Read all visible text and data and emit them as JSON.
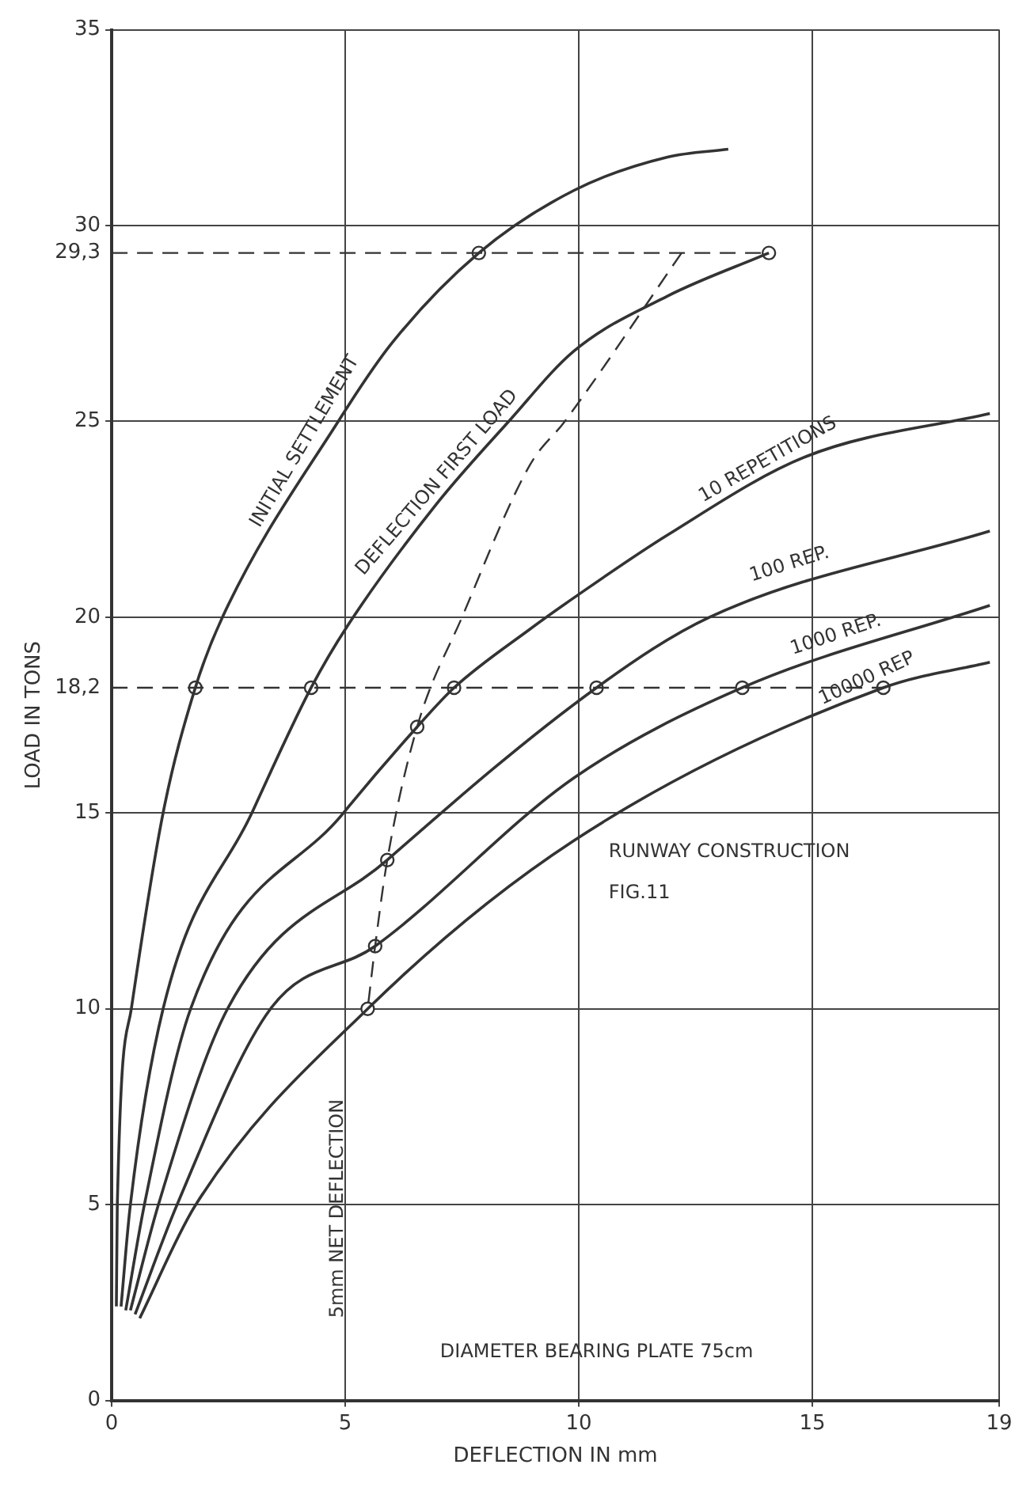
{
  "chart_data": {
    "type": "line",
    "xlabel": "DEFLECTION IN mm",
    "ylabel": "LOAD IN TONS",
    "xlim": [
      0,
      19
    ],
    "xticks": [
      0,
      5,
      10,
      15,
      19
    ],
    "ylim": [
      0,
      35
    ],
    "yticks": [
      0,
      5,
      10,
      15,
      {
        "value": 18.2,
        "label": "18,2"
      },
      20,
      25,
      {
        "value": 29.3,
        "label": "29,3"
      },
      30,
      35
    ],
    "grid": true,
    "legend": false,
    "marker": "none",
    "line_style": "solid",
    "series": [
      {
        "color": "#333333",
        "x": [
          0.1,
          0.12,
          0.42,
          1.1,
          1.79,
          2.37,
          4.85,
          6.0,
          7.86,
          9.9,
          11.9,
          13.2
        ],
        "values": [
          2.4,
          5,
          10,
          15,
          18.2,
          20,
          25,
          27,
          29.3,
          30.9,
          31.75,
          31.95
        ]
      },
      {
        "color": "#333333",
        "x": [
          0.2,
          0.4,
          1.1,
          3.0,
          4.27,
          5.06,
          6.96,
          8.5,
          9.9,
          11.9,
          14.07
        ],
        "values": [
          2.4,
          5,
          10,
          15,
          18.2,
          19.8,
          22.9,
          25.0,
          26.8,
          28.2,
          29.3
        ]
      },
      {
        "color": "#333333",
        "x": [
          0.3,
          0.7,
          1.69,
          4.96,
          6.54,
          7.33,
          8.96,
          9.9,
          11.9,
          14.86,
          18.8
        ],
        "values": [
          2.3,
          5,
          10,
          15,
          17.2,
          18.2,
          19.7,
          20.5,
          22.1,
          24.1,
          25.2
        ]
      },
      {
        "color": "#333333",
        "x": [
          0.4,
          1.0,
          2.48,
          5.9,
          10.38,
          12.8,
          18.8
        ],
        "values": [
          2.3,
          5,
          10,
          13.8,
          18.2,
          20,
          22.2
        ]
      },
      {
        "color": "#333333",
        "x": [
          0.5,
          1.4,
          3.4,
          5.64,
          9.9,
          13.5,
          18.8
        ],
        "values": [
          2.2,
          5,
          10,
          11.6,
          15.9,
          18.2,
          20.3
        ]
      },
      {
        "color": "#333333",
        "x": [
          0.6,
          1.8,
          5.48,
          9.9,
          16.52,
          18.8
        ],
        "values": [
          2.1,
          5,
          10,
          14.3,
          18.2,
          18.85
        ]
      },
      {
        "color": "#333333",
        "line_style": "dashed",
        "x": [
          12.2,
          9.7,
          8.96,
          7.5,
          6.54,
          5.9,
          5.64,
          5.48
        ],
        "values": [
          29.3,
          25,
          23.9,
          20,
          17.2,
          13.8,
          11.6,
          10
        ]
      },
      {
        "color": "#333333",
        "line_style": "dashed",
        "x": [
          0,
          14.07
        ],
        "values": [
          29.3,
          29.3
        ]
      },
      {
        "color": "#333333",
        "line_style": "dashed",
        "x": [
          0,
          16.52
        ],
        "values": [
          18.2,
          18.2
        ]
      },
      {
        "color": "#333333",
        "type": "scatter",
        "marker": "circle",
        "x": [
          6.54,
          5.9,
          5.64,
          5.48,
          7.86,
          14.07,
          1.79,
          4.27,
          7.33,
          10.38,
          13.5,
          16.52
        ],
        "values": [
          17.2,
          13.8,
          11.6,
          10,
          29.3,
          29.3,
          18.2,
          18.2,
          18.2,
          18.2,
          18.2,
          18.2
        ]
      }
    ],
    "annotations": [
      {
        "text": "INITIAL SETTLEMENT",
        "x": 4.4,
        "y": 24.3
      },
      {
        "text": "DEFLECTION FIRST LOAD",
        "x": 7.2,
        "y": 23.2
      },
      {
        "text": "10 REPETITIONS",
        "x": 14.2,
        "y": 23.7
      },
      {
        "text": "100 REP.",
        "x": 14.6,
        "y": 21
      },
      {
        "text": "1000 REP.",
        "x": 15.6,
        "y": 19.2
      },
      {
        "text": "10000 REP",
        "x": 16.3,
        "y": 18.1
      },
      "5mm NET DEFLECTION",
      "RUNWAY CONSTRUCTION",
      "FIG.11",
      "DIAMETER BEARING PLATE 75cm"
    ]
  }
}
